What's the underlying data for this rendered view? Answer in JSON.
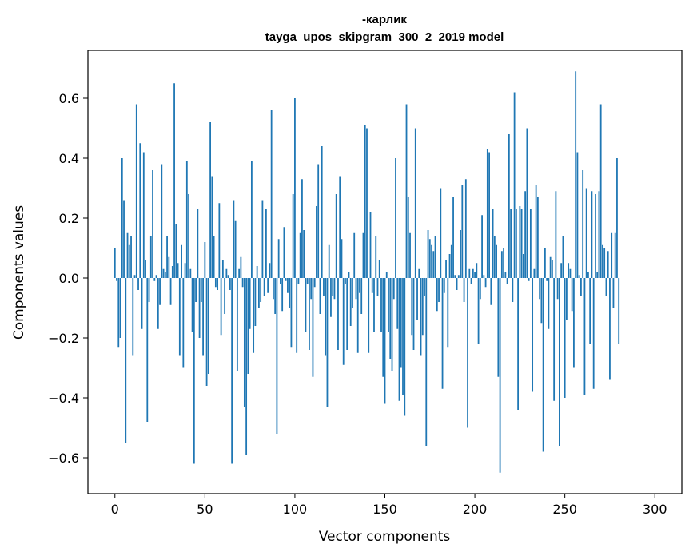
{
  "chart_data": {
    "type": "bar",
    "title_line1": "-карлик",
    "title_line2": "tayga_upos_skipgram_300_2_2019 model",
    "xlabel": "Vector components",
    "ylabel": "Components values",
    "xlim": [
      -15,
      315
    ],
    "ylim": [
      -0.72,
      0.76
    ],
    "xticks": [
      0,
      50,
      100,
      150,
      200,
      250,
      300
    ],
    "xtick_labels": [
      "0",
      "50",
      "100",
      "150",
      "200",
      "250",
      "300"
    ],
    "yticks": [
      -0.6,
      -0.4,
      -0.2,
      0.0,
      0.2,
      0.4,
      0.6
    ],
    "ytick_labels": [
      "−0.6",
      "−0.4",
      "−0.2",
      "0.0",
      "0.2",
      "0.4",
      "0.6"
    ],
    "bar_color": "#1f77b4",
    "series": [
      {
        "name": "components",
        "x_start": 0,
        "values": [
          0.1,
          -0.01,
          -0.23,
          -0.2,
          0.4,
          0.26,
          -0.55,
          0.15,
          0.11,
          0.14,
          -0.26,
          0.01,
          0.58,
          -0.04,
          0.45,
          -0.17,
          0.42,
          0.06,
          -0.48,
          -0.08,
          0.14,
          0.36,
          -0.01,
          0.01,
          -0.17,
          -0.09,
          0.38,
          0.03,
          0.02,
          0.14,
          0.07,
          -0.09,
          0.04,
          0.65,
          0.18,
          0.05,
          -0.26,
          0.11,
          -0.3,
          0.05,
          0.39,
          0.28,
          0.03,
          -0.18,
          -0.62,
          -0.08,
          0.23,
          -0.2,
          -0.08,
          -0.26,
          0.12,
          -0.36,
          -0.32,
          0.52,
          0.34,
          0.14,
          -0.03,
          -0.04,
          0.25,
          -0.19,
          0.06,
          -0.12,
          0.03,
          0.01,
          -0.04,
          -0.62,
          0.26,
          0.19,
          -0.31,
          0.03,
          0.07,
          -0.03,
          -0.43,
          -0.59,
          -0.32,
          -0.17,
          0.39,
          -0.25,
          -0.16,
          0.04,
          -0.1,
          -0.08,
          0.26,
          -0.06,
          0.23,
          -0.05,
          0.05,
          0.56,
          -0.07,
          -0.12,
          -0.52,
          0.13,
          -0.02,
          -0.11,
          0.17,
          -0.01,
          -0.05,
          -0.1,
          -0.23,
          0.28,
          0.6,
          -0.25,
          -0.02,
          0.15,
          0.33,
          0.16,
          -0.18,
          -0.02,
          -0.24,
          -0.07,
          -0.33,
          -0.03,
          0.24,
          0.38,
          -0.12,
          0.44,
          -0.06,
          -0.26,
          -0.43,
          0.11,
          -0.13,
          -0.06,
          -0.07,
          0.28,
          -0.24,
          0.34,
          0.13,
          -0.29,
          -0.02,
          -0.24,
          0.02,
          -0.16,
          -0.1,
          0.15,
          -0.07,
          -0.25,
          -0.05,
          -0.12,
          0.15,
          0.51,
          0.5,
          -0.25,
          0.22,
          -0.05,
          -0.18,
          0.14,
          -0.06,
          0.06,
          -0.18,
          -0.33,
          -0.42,
          0.02,
          -0.18,
          -0.27,
          -0.31,
          -0.07,
          0.4,
          -0.17,
          -0.41,
          -0.3,
          -0.39,
          -0.46,
          0.58,
          0.27,
          0.15,
          -0.19,
          -0.24,
          0.5,
          -0.14,
          0.03,
          -0.26,
          -0.19,
          -0.06,
          -0.56,
          0.16,
          0.13,
          0.11,
          0.09,
          0.14,
          -0.11,
          -0.08,
          0.3,
          -0.37,
          -0.05,
          0.06,
          -0.23,
          0.08,
          0.11,
          0.27,
          0.01,
          -0.04,
          0.01,
          0.16,
          0.31,
          -0.08,
          0.33,
          -0.5,
          0.03,
          -0.02,
          0.03,
          0.02,
          0.05,
          -0.22,
          -0.07,
          0.21,
          0.01,
          -0.03,
          0.43,
          0.42,
          -0.09,
          0.23,
          0.14,
          0.11,
          -0.33,
          -0.65,
          0.09,
          0.1,
          0.02,
          -0.02,
          0.48,
          0.23,
          -0.08,
          0.62,
          0.23,
          -0.44,
          0.24,
          0.23,
          0.08,
          0.29,
          0.5,
          -0.01,
          0.23,
          -0.38,
          0.03,
          0.31,
          0.27,
          -0.07,
          -0.15,
          -0.58,
          0.1,
          -0.01,
          -0.17,
          0.07,
          0.06,
          -0.41,
          0.29,
          -0.07,
          -0.56,
          0.05,
          0.14,
          -0.4,
          -0.14,
          0.05,
          0.03,
          -0.11,
          -0.3,
          0.69,
          0.42,
          0.01,
          -0.06,
          0.36,
          -0.39,
          0.3,
          0.02,
          -0.22,
          0.29,
          -0.37,
          0.28,
          0.02,
          0.29,
          0.58,
          0.11,
          0.1,
          -0.06,
          0.09,
          -0.34,
          0.15,
          -0.1,
          0.15,
          0.4,
          -0.22
        ]
      }
    ]
  }
}
